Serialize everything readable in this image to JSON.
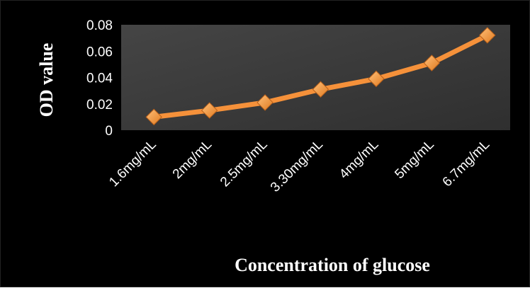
{
  "chart_data": {
    "type": "line",
    "categories": [
      "1.6mg/mL",
      "2mg/mL",
      "2.5mg/mL",
      "3.30mg/mL",
      "4mg/mL",
      "5mg/mL",
      "6.7mg/mL"
    ],
    "series": [
      {
        "values": [
          0.01,
          0.015,
          0.021,
          0.031,
          0.039,
          0.051,
          0.072
        ]
      }
    ],
    "title": "",
    "xlabel": "Concentration of glucose",
    "ylabel": "OD value",
    "ylim": [
      0,
      0.08
    ],
    "yticks": [
      "0",
      "0.02",
      "0.04",
      "0.06",
      "0.08"
    ],
    "grid": false,
    "legend": "none",
    "colors": {
      "background": "#000000",
      "plot_area": "#3f3f3f",
      "line": "#f5913a",
      "marker": "#f5a04a",
      "text": "#ffffff"
    }
  }
}
